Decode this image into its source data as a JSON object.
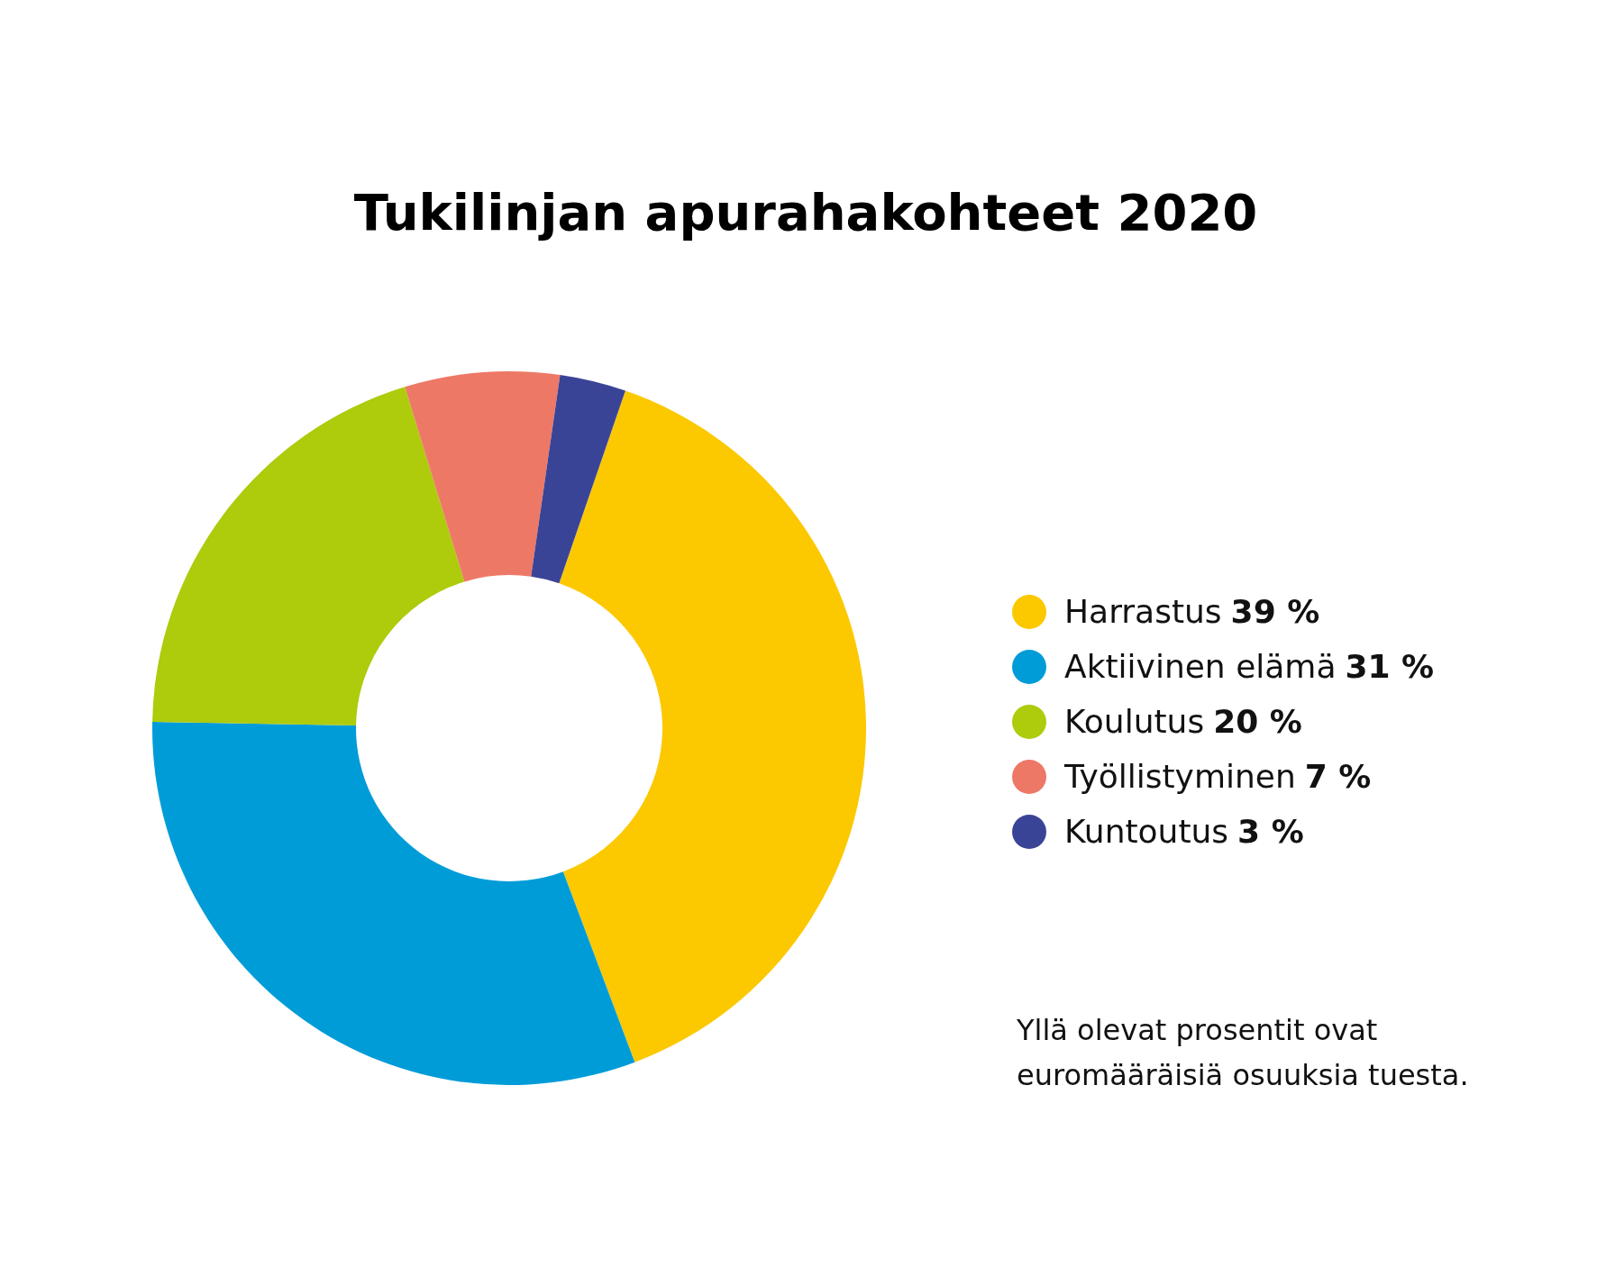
{
  "chart_data": {
    "type": "donut",
    "title": "Tukilinjan apurahakohteet 2020",
    "categories": [
      "Harrastus",
      "Aktiivinen elämä",
      "Koulutus",
      "Työllistyminen",
      "Kuntoutus"
    ],
    "values": [
      39,
      31,
      20,
      7,
      3
    ],
    "value_labels": [
      "39 %",
      "31 %",
      "20 %",
      "7 %",
      "3 %"
    ],
    "colors": [
      "#fcc800",
      "#009cd8",
      "#aecb0c",
      "#ee7866",
      "#3a4496"
    ],
    "legend": "right",
    "annotations": [
      "Yllä olevat prosentit ovat euromääräisiä osuuksia tuesta."
    ]
  }
}
